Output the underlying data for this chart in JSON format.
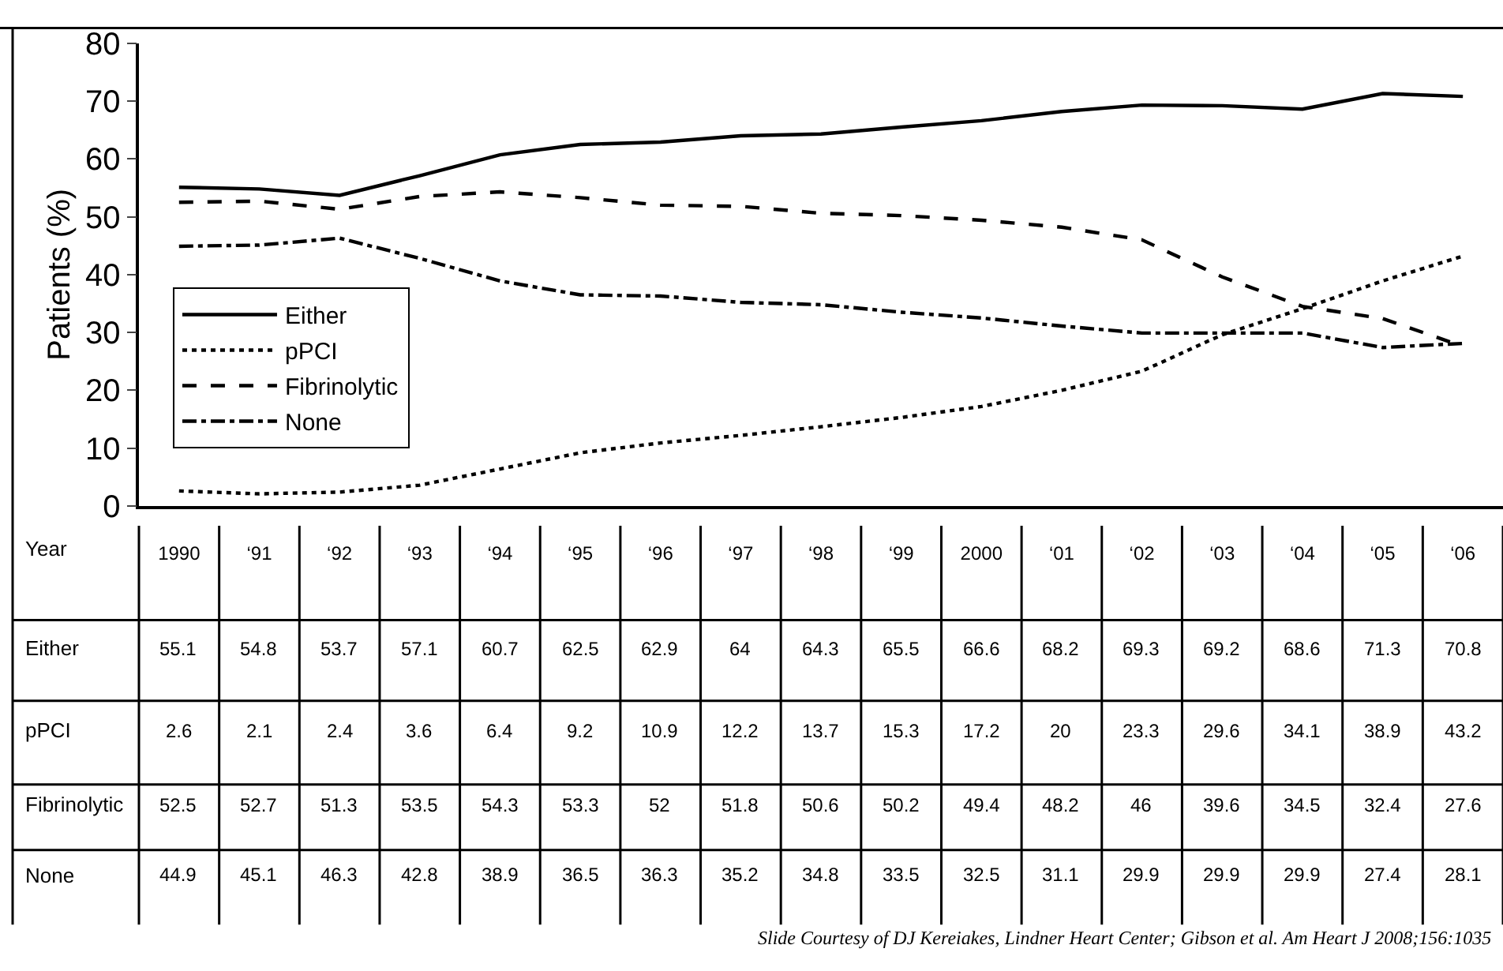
{
  "chart_data": {
    "type": "line",
    "ylabel": "Patients (%)",
    "xlabel": "Year",
    "categories": [
      "1990",
      "‘91",
      "‘92",
      "‘93",
      "‘94",
      "‘95",
      "‘96",
      "‘97",
      "‘98",
      "‘99",
      "2000",
      "‘01",
      "‘02",
      "‘03",
      "‘04",
      "‘05",
      "‘06"
    ],
    "series": [
      {
        "name": "Either",
        "color": "#000000",
        "line_style": "solid",
        "values": [
          55.1,
          54.8,
          53.7,
          57.1,
          60.7,
          62.5,
          62.9,
          64,
          64.3,
          65.5,
          66.6,
          68.2,
          69.3,
          69.2,
          68.6,
          71.3,
          70.8
        ]
      },
      {
        "name": "pPCI",
        "color": "#000000",
        "line_style": "dotted",
        "values": [
          2.6,
          2.1,
          2.4,
          3.6,
          6.4,
          9.2,
          10.9,
          12.2,
          13.7,
          15.3,
          17.2,
          20,
          23.3,
          29.6,
          34.1,
          38.9,
          43.2
        ]
      },
      {
        "name": "Fibrinolytic",
        "color": "#000000",
        "line_style": "dashed",
        "values": [
          52.5,
          52.7,
          51.3,
          53.5,
          54.3,
          53.3,
          52,
          51.8,
          50.6,
          50.2,
          49.4,
          48.2,
          46,
          39.6,
          34.5,
          32.4,
          27.6
        ]
      },
      {
        "name": "None",
        "color": "#000000",
        "line_style": "dashdot",
        "values": [
          44.9,
          45.1,
          46.3,
          42.8,
          38.9,
          36.5,
          36.3,
          35.2,
          34.8,
          33.5,
          32.5,
          31.1,
          29.9,
          29.9,
          29.9,
          27.4,
          28.1
        ]
      }
    ],
    "ylim": [
      0,
      80
    ],
    "yticks": [
      0,
      10,
      20,
      30,
      40,
      50,
      60,
      70,
      80
    ],
    "grid": false,
    "marker": "none",
    "legend": "left",
    "data_labels": true,
    "annotations": [
      "Slide Courtesy of DJ Kereiakes, Lindner Heart Center; Gibson et al. Am Heart J 2008;156:1035"
    ]
  }
}
